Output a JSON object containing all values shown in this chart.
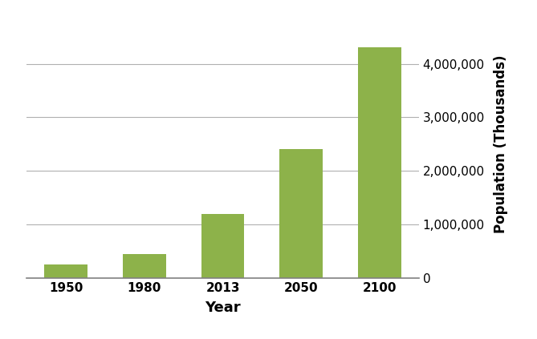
{
  "categories": [
    "1950",
    "1980",
    "2013",
    "2050",
    "2100"
  ],
  "values": [
    252000,
    450000,
    1200000,
    2400000,
    4300000
  ],
  "bar_color": "#8db24a",
  "bar_edgecolor": "#8db24a",
  "xlabel": "Year",
  "ylabel": "Population (Thousands)",
  "xlabel_fontsize": 13,
  "ylabel_fontsize": 12,
  "tick_fontsize": 11,
  "ylim": [
    0,
    5000000
  ],
  "yticks": [
    0,
    1000000,
    2000000,
    3000000,
    4000000
  ],
  "background_color": "#ffffff",
  "grid_color": "#b0b0b0",
  "bar_width": 0.55
}
